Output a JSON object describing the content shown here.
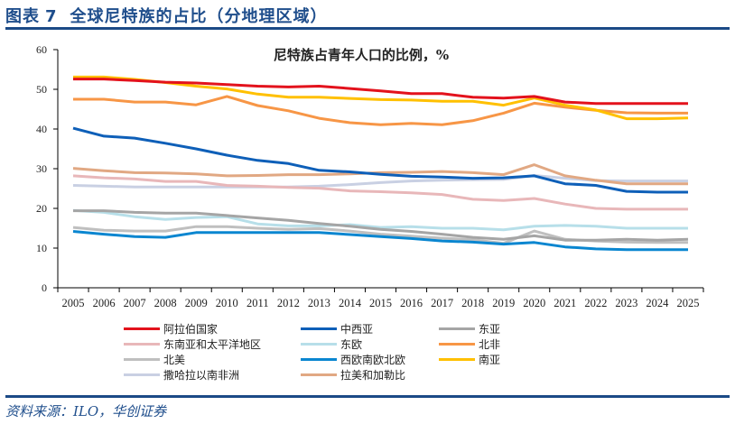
{
  "header": {
    "figure_label": "图表",
    "figure_number": "7",
    "figure_title": "全球尼特族的占比（分地理区域）"
  },
  "footer": {
    "source": "资料来源：ILO，华创证券"
  },
  "chart_data": {
    "type": "line",
    "title": "尼特族占青年人口的比例，%",
    "xlabel": "",
    "ylabel": "",
    "ylim": [
      0,
      60
    ],
    "yticks": [
      0,
      10,
      20,
      30,
      40,
      50,
      60
    ],
    "grid": false,
    "legend_position": "bottom",
    "categories": [
      "2005",
      "2006",
      "2007",
      "2008",
      "2009",
      "2010",
      "2011",
      "2012",
      "2013",
      "2014",
      "2015",
      "2016",
      "2017",
      "2018",
      "2019",
      "2020",
      "2021",
      "2022",
      "2023",
      "2024",
      "2025"
    ],
    "series": [
      {
        "name": "阿拉伯国家",
        "color": "#e3121c",
        "values": [
          52.6,
          52.6,
          52.2,
          51.8,
          51.6,
          51.2,
          50.8,
          50.6,
          50.8,
          50.2,
          49.6,
          48.9,
          48.9,
          48.0,
          47.8,
          48.2,
          46.8,
          46.4,
          46.4,
          46.4,
          46.4
        ]
      },
      {
        "name": "中西亚",
        "color": "#0e5fb8",
        "values": [
          40.2,
          38.2,
          37.7,
          36.4,
          35.0,
          33.4,
          32.1,
          31.3,
          29.6,
          29.2,
          28.6,
          28.1,
          27.9,
          27.6,
          27.7,
          28.2,
          26.2,
          25.8,
          24.3,
          24.1,
          24.1
        ]
      },
      {
        "name": "东亚",
        "color": "#a5a5a5",
        "values": [
          19.4,
          19.4,
          19.0,
          18.8,
          18.8,
          18.2,
          17.6,
          17.0,
          16.2,
          15.5,
          14.7,
          14.2,
          13.5,
          12.7,
          12.2,
          13.1,
          12.0,
          12.0,
          12.2,
          12.0,
          12.2
        ]
      },
      {
        "name": "东南亚和太平洋地区",
        "color": "#e8b7b9",
        "values": [
          28.2,
          27.7,
          27.4,
          26.8,
          26.8,
          25.8,
          25.6,
          25.3,
          25.1,
          24.4,
          24.2,
          23.9,
          23.5,
          22.3,
          22.0,
          22.5,
          21.1,
          20.0,
          19.8,
          19.8,
          19.8
        ]
      },
      {
        "name": "东欧",
        "color": "#b7dfe9",
        "values": [
          19.5,
          19.0,
          17.9,
          17.2,
          17.7,
          17.9,
          16.1,
          15.6,
          15.6,
          15.9,
          15.2,
          15.4,
          15.0,
          15.0,
          14.6,
          15.5,
          15.7,
          15.5,
          15.0,
          15.0,
          15.0
        ]
      },
      {
        "name": "北非",
        "color": "#f79646",
        "values": [
          47.5,
          47.5,
          46.8,
          46.8,
          46.1,
          48.2,
          45.9,
          44.6,
          42.7,
          41.6,
          41.1,
          41.4,
          41.1,
          42.1,
          44.0,
          46.5,
          45.5,
          44.7,
          44.1,
          44.0,
          44.0
        ]
      },
      {
        "name": "北美",
        "color": "#bfbfbf",
        "values": [
          15.2,
          14.5,
          14.3,
          14.3,
          15.4,
          15.4,
          15.0,
          14.7,
          14.9,
          14.3,
          13.5,
          13.0,
          12.5,
          12.1,
          11.2,
          14.3,
          12.2,
          11.8,
          11.5,
          11.4,
          11.4
        ]
      },
      {
        "name": "西欧南欧北欧",
        "color": "#0a86d0",
        "values": [
          14.2,
          13.5,
          12.9,
          12.7,
          13.9,
          13.9,
          13.9,
          13.9,
          13.9,
          13.4,
          12.9,
          12.4,
          11.8,
          11.5,
          11.0,
          11.4,
          10.3,
          9.8,
          9.6,
          9.6,
          9.6
        ]
      },
      {
        "name": "南亚",
        "color": "#ffc000",
        "values": [
          53.1,
          53.1,
          52.5,
          51.7,
          50.8,
          50.1,
          48.8,
          48.0,
          48.0,
          47.7,
          47.4,
          47.3,
          47.0,
          47.0,
          46.0,
          47.8,
          46.0,
          44.8,
          42.6,
          42.6,
          42.8
        ]
      },
      {
        "name": "撒哈拉以南非洲",
        "color": "#c9d0e3",
        "values": [
          25.8,
          25.6,
          25.4,
          25.4,
          25.4,
          25.4,
          25.4,
          25.4,
          25.6,
          26.0,
          26.5,
          26.9,
          27.1,
          27.2,
          27.3,
          28.3,
          27.6,
          27.0,
          26.9,
          26.9,
          26.9
        ]
      },
      {
        "name": "拉美和加勒比",
        "color": "#e1a883",
        "values": [
          30.1,
          29.5,
          29.0,
          28.9,
          28.7,
          28.2,
          28.3,
          28.5,
          28.5,
          28.7,
          29.0,
          29.1,
          29.3,
          29.0,
          28.5,
          31.0,
          28.2,
          27.1,
          26.2,
          26.2,
          26.2
        ]
      }
    ]
  }
}
